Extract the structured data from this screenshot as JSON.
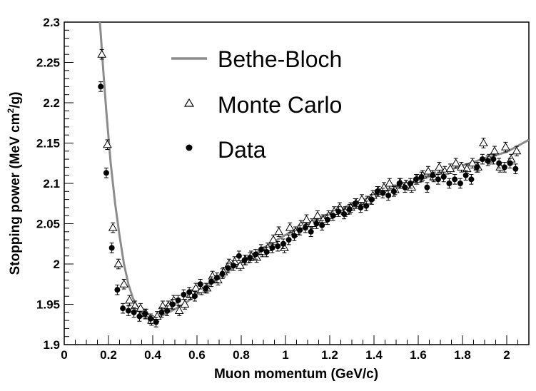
{
  "chart_data": {
    "type": "scatter",
    "xlabel": "Muon momentum (GeV/c)",
    "ylabel": "Stopping power (MeV cm²/g)",
    "ylabel_parts": {
      "before": "Stopping power (MeV cm",
      "sup": "2",
      "after": "/g)"
    },
    "xlim": [
      0,
      2.1
    ],
    "ylim": [
      1.9,
      2.3
    ],
    "xticks": [
      "0",
      "0.2",
      "0.4",
      "0.6",
      "0.8",
      "1",
      "1.2",
      "1.4",
      "1.6",
      "1.8",
      "2"
    ],
    "yticks": [
      "1.9",
      "1.95",
      "2",
      "2.05",
      "2.1",
      "2.15",
      "2.2",
      "2.25",
      "2.3"
    ],
    "legend_position": "top-center",
    "legend": [
      {
        "name": "Bethe-Bloch",
        "marker": "line"
      },
      {
        "name": "Monte Carlo",
        "marker": "open-triangle"
      },
      {
        "name": "Data",
        "marker": "filled-circle"
      }
    ],
    "colors": {
      "curve": "#8c8c8c",
      "markers": "#000000"
    },
    "series": [
      {
        "name": "Bethe-Bloch",
        "kind": "line",
        "x": [
          0.145,
          0.155,
          0.165,
          0.175,
          0.19,
          0.21,
          0.23,
          0.25,
          0.27,
          0.29,
          0.31,
          0.33,
          0.35,
          0.37,
          0.39,
          0.41,
          0.43,
          0.45,
          0.5,
          0.55,
          0.6,
          0.7,
          0.8,
          0.9,
          1.0,
          1.1,
          1.2,
          1.3,
          1.4,
          1.5,
          1.6,
          1.7,
          1.8,
          1.9,
          2.0,
          2.1
        ],
        "y": [
          2.35,
          2.32,
          2.285,
          2.245,
          2.19,
          2.125,
          2.075,
          2.035,
          2.0,
          1.975,
          1.958,
          1.947,
          1.94,
          1.936,
          1.934,
          1.934,
          1.935,
          1.937,
          1.944,
          1.952,
          1.962,
          1.983,
          2.002,
          2.02,
          2.036,
          2.05,
          2.063,
          2.074,
          2.085,
          2.095,
          2.104,
          2.113,
          2.122,
          2.131,
          2.139,
          2.154
        ]
      },
      {
        "name": "Monte Carlo",
        "kind": "open-triangle",
        "err": 0.006,
        "x": [
          0.17,
          0.195,
          0.22,
          0.245,
          0.27,
          0.295,
          0.32,
          0.345,
          0.37,
          0.395,
          0.42,
          0.445,
          0.47,
          0.495,
          0.52,
          0.545,
          0.57,
          0.595,
          0.62,
          0.645,
          0.67,
          0.695,
          0.72,
          0.745,
          0.77,
          0.795,
          0.82,
          0.845,
          0.87,
          0.895,
          0.92,
          0.945,
          0.97,
          0.995,
          1.02,
          1.045,
          1.07,
          1.095,
          1.12,
          1.145,
          1.17,
          1.195,
          1.22,
          1.245,
          1.27,
          1.295,
          1.32,
          1.345,
          1.37,
          1.395,
          1.42,
          1.445,
          1.47,
          1.495,
          1.52,
          1.545,
          1.57,
          1.595,
          1.62,
          1.645,
          1.67,
          1.695,
          1.72,
          1.745,
          1.77,
          1.795,
          1.82,
          1.845,
          1.87,
          1.895,
          1.92,
          1.945,
          1.97,
          1.995,
          2.02,
          2.045
        ],
        "y": [
          2.26,
          2.148,
          2.045,
          2.0,
          1.975,
          1.955,
          1.948,
          1.945,
          1.938,
          1.93,
          1.935,
          1.948,
          1.948,
          1.955,
          1.942,
          1.95,
          1.962,
          1.97,
          1.968,
          1.97,
          1.985,
          1.98,
          1.99,
          2.0,
          2.003,
          1.998,
          2.005,
          2.01,
          2.008,
          2.015,
          2.02,
          2.03,
          2.04,
          2.02,
          2.045,
          2.04,
          2.048,
          2.055,
          2.05,
          2.06,
          2.055,
          2.06,
          2.065,
          2.07,
          2.065,
          2.07,
          2.075,
          2.08,
          2.078,
          2.085,
          2.09,
          2.095,
          2.1,
          2.092,
          2.1,
          2.098,
          2.095,
          2.105,
          2.11,
          2.115,
          2.108,
          2.12,
          2.115,
          2.118,
          2.125,
          2.12,
          2.118,
          2.125,
          2.12,
          2.15,
          2.13,
          2.14,
          2.12,
          2.145,
          2.13,
          2.14
        ]
      },
      {
        "name": "Data",
        "kind": "filled-circle",
        "err": 0.006,
        "x": [
          0.165,
          0.19,
          0.215,
          0.24,
          0.265,
          0.29,
          0.315,
          0.34,
          0.365,
          0.39,
          0.415,
          0.44,
          0.465,
          0.49,
          0.515,
          0.54,
          0.565,
          0.59,
          0.615,
          0.64,
          0.665,
          0.69,
          0.715,
          0.74,
          0.765,
          0.79,
          0.815,
          0.84,
          0.865,
          0.89,
          0.915,
          0.94,
          0.965,
          0.99,
          1.015,
          1.04,
          1.065,
          1.09,
          1.115,
          1.14,
          1.165,
          1.19,
          1.215,
          1.24,
          1.265,
          1.29,
          1.315,
          1.34,
          1.365,
          1.39,
          1.415,
          1.44,
          1.465,
          1.49,
          1.515,
          1.54,
          1.565,
          1.59,
          1.615,
          1.64,
          1.665,
          1.69,
          1.715,
          1.74,
          1.765,
          1.79,
          1.815,
          1.84,
          1.865,
          1.89,
          1.915,
          1.94,
          1.965,
          1.99,
          2.015,
          2.04
        ],
        "y": [
          2.22,
          2.113,
          2.02,
          1.968,
          1.945,
          1.942,
          1.94,
          1.935,
          1.938,
          1.932,
          1.928,
          1.94,
          1.942,
          1.95,
          1.955,
          1.962,
          1.965,
          1.96,
          1.975,
          1.97,
          1.978,
          1.983,
          1.988,
          1.995,
          1.998,
          2.01,
          2.005,
          2.008,
          2.012,
          2.018,
          2.015,
          2.02,
          2.022,
          2.025,
          2.03,
          2.035,
          2.042,
          2.045,
          2.04,
          2.05,
          2.048,
          2.055,
          2.06,
          2.065,
          2.062,
          2.068,
          2.075,
          2.07,
          2.072,
          2.08,
          2.09,
          2.088,
          2.085,
          2.09,
          2.1,
          2.095,
          2.1,
          2.105,
          2.108,
          2.095,
          2.11,
          2.105,
          2.108,
          2.1,
          2.105,
          2.1,
          2.11,
          2.105,
          2.12,
          2.13,
          2.128,
          2.13,
          2.125,
          2.12,
          2.125,
          2.118
        ]
      }
    ]
  }
}
